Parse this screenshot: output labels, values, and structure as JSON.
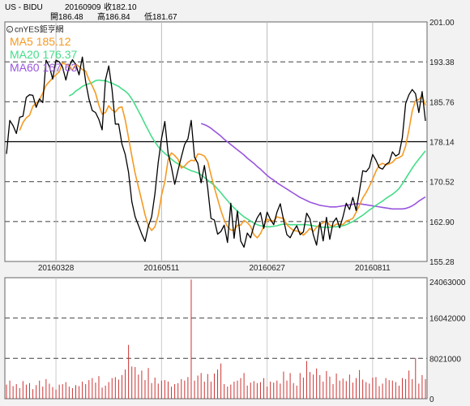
{
  "header": {
    "symbol": "US - BIDU",
    "date": "20160909",
    "close_label": "收182.10",
    "open_label": "開186.48",
    "high_label": "高186.84",
    "low_label": "低181.67"
  },
  "brand": {
    "icon": "copyright-icon",
    "text": "cnYES鉅亨網"
  },
  "colors": {
    "price": "#000000",
    "ma5": "#f59a23",
    "ma20": "#44dd88",
    "ma60": "#9955dd",
    "volume": "#cc3333",
    "grid": "#555555",
    "panel_bg": "#ffffff",
    "page_bg": "#f2f2f2"
  },
  "chart_data": [
    {
      "type": "line",
      "title": "",
      "legend": [
        {
          "name": "MA5",
          "value": "185.12",
          "color": "#f59a23"
        },
        {
          "name": "MA20",
          "value": "176.37",
          "color": "#44dd88"
        },
        {
          "name": "MA60",
          "value": "167.63",
          "color": "#9955dd"
        }
      ],
      "legend_position": "top-left",
      "ylim": [
        155.28,
        201.0
      ],
      "y_ticks": [
        "201.00",
        "193.38",
        "185.76",
        "178.14",
        "170.52",
        "162.90",
        "155.28"
      ],
      "y_ticks_dashed": [
        "193.38",
        "185.76",
        "170.52",
        "162.90"
      ],
      "y_tick_solid": "178.14",
      "x_labels": [
        {
          "index": 15,
          "label": "20160328"
        },
        {
          "index": 47,
          "label": "20160511"
        },
        {
          "index": 79,
          "label": "20160627"
        },
        {
          "index": 111,
          "label": "20160811"
        }
      ],
      "x_count": 128,
      "series": [
        {
          "name": "Price",
          "values": [
            175.8,
            182.2,
            181.2,
            179.7,
            182.8,
            183.0,
            186.6,
            187.1,
            187.0,
            184.7,
            186.3,
            185.6,
            193.7,
            192.5,
            190.1,
            193.7,
            193.4,
            192.4,
            189.9,
            192.5,
            193.8,
            192.9,
            190.9,
            194.3,
            189.6,
            186.3,
            184.1,
            183.7,
            182.4,
            180.4,
            189.9,
            192.6,
            188.1,
            181.5,
            181.5,
            177.7,
            175.7,
            172.3,
            166.7,
            163.8,
            162.2,
            160.5,
            159.1,
            162.0,
            163.8,
            168.2,
            174.2,
            178.7,
            182.0,
            175.9,
            173.3,
            170.0,
            172.7,
            175.2,
            177.6,
            178.7,
            182.2,
            175.2,
            174.0,
            170.3,
            173.6,
            169.3,
            163.5,
            163.2,
            160.5,
            161.0,
            162.2,
            158.9,
            166.4,
            159.7,
            164.9,
            159.2,
            158.0,
            160.7,
            159.8,
            162.1,
            163.6,
            164.6,
            161.6,
            164.7,
            163.3,
            162.3,
            164.7,
            166.3,
            163.2,
            160.4,
            159.8,
            161.1,
            162.1,
            160.4,
            160.9,
            164.5,
            163.4,
            160.4,
            158.4,
            162.8,
            159.2,
            163.7,
            159.5,
            162.7,
            163.6,
            161.7,
            163.8,
            166.4,
            165.2,
            167.5,
            165.0,
            168.7,
            172.6,
            172.4,
            173.2,
            175.7,
            174.6,
            173.2,
            172.9,
            173.8,
            174.2,
            176.2,
            175.4,
            175.8,
            178.9,
            185.4,
            187.1,
            188.1,
            187.3,
            183.7,
            187.7,
            182.1
          ]
        },
        {
          "name": "MA5",
          "values": [
            null,
            null,
            null,
            null,
            180.3,
            181.8,
            182.7,
            183.2,
            184.9,
            185.5,
            186.2,
            187.4,
            188.9,
            189.6,
            190.3,
            190.9,
            191.5,
            193.2,
            192.9,
            192.7,
            191.8,
            192.9,
            192.5,
            191.9,
            191.6,
            190.0,
            188.8,
            187.4,
            185.1,
            183.4,
            183.7,
            185.0,
            184.2,
            183.8,
            184.6,
            184.8,
            182.3,
            178.9,
            175.4,
            172.1,
            169.5,
            166.9,
            164.2,
            162.1,
            161.2,
            161.9,
            164.1,
            167.9,
            170.5,
            174.7,
            176.0,
            175.5,
            174.8,
            173.1,
            173.5,
            174.2,
            174.6,
            174.5,
            175.8,
            175.7,
            175.4,
            174.4,
            171.8,
            169.4,
            167.2,
            165.0,
            163.2,
            161.9,
            161.3,
            161.2,
            162.2,
            162.2,
            163.1,
            162.7,
            162.0,
            160.4,
            159.8,
            160.6,
            162.0,
            163.4,
            163.0,
            163.0,
            163.8,
            163.6,
            163.5,
            162.3,
            161.7,
            161.2,
            161.1,
            160.9,
            160.3,
            160.9,
            161.6,
            161.0,
            161.8,
            162.3,
            162.7,
            163.0,
            162.2,
            162.0,
            162.4,
            162.4,
            162.3,
            163.0,
            163.2,
            163.5,
            164.7,
            166.0,
            167.4,
            168.4,
            169.6,
            171.0,
            172.5,
            173.7,
            174.0,
            173.7,
            173.9,
            174.2,
            174.9,
            175.1,
            175.5,
            177.3,
            180.4,
            184.0,
            186.0,
            186.2,
            186.9,
            185.1
          ]
        },
        {
          "name": "MA20",
          "values": [
            null,
            null,
            null,
            null,
            null,
            null,
            null,
            null,
            null,
            null,
            null,
            null,
            null,
            null,
            null,
            null,
            null,
            null,
            null,
            186.9,
            187.2,
            187.8,
            188.2,
            188.7,
            189.0,
            189.2,
            189.4,
            189.8,
            189.9,
            189.8,
            189.8,
            189.5,
            189.3,
            189.0,
            188.7,
            188.2,
            187.8,
            187.2,
            186.3,
            185.2,
            184.0,
            182.8,
            181.5,
            180.3,
            179.1,
            178.1,
            177.2,
            176.5,
            175.9,
            175.4,
            174.8,
            174.3,
            173.9,
            173.5,
            173.2,
            172.9,
            172.6,
            172.4,
            172.2,
            171.8,
            171.3,
            170.8,
            170.3,
            169.8,
            169.1,
            168.4,
            167.6,
            166.9,
            166.1,
            165.5,
            164.9,
            164.3,
            163.8,
            163.4,
            163.0,
            162.6,
            162.3,
            162.1,
            162.0,
            161.9,
            161.9,
            162.0,
            162.1,
            162.3,
            162.4,
            162.4,
            162.3,
            162.3,
            162.3,
            162.3,
            162.3,
            162.3,
            162.2,
            162.1,
            162.0,
            161.9,
            161.8,
            161.8,
            161.8,
            161.9,
            161.9,
            162.0,
            162.1,
            162.3,
            162.6,
            162.9,
            163.3,
            163.7,
            164.1,
            164.6,
            165.1,
            165.5,
            166.0,
            166.4,
            166.8,
            167.3,
            167.7,
            168.1,
            168.6,
            169.2,
            170.1,
            171.1,
            172.1,
            173.1,
            174.0,
            174.8,
            175.6,
            176.4
          ]
        },
        {
          "name": "MA60",
          "values": [
            null,
            null,
            null,
            null,
            null,
            null,
            null,
            null,
            null,
            null,
            null,
            null,
            null,
            null,
            null,
            null,
            null,
            null,
            null,
            null,
            null,
            null,
            null,
            null,
            null,
            null,
            null,
            null,
            null,
            null,
            null,
            null,
            null,
            null,
            null,
            null,
            null,
            null,
            null,
            null,
            null,
            null,
            null,
            null,
            null,
            null,
            null,
            null,
            null,
            null,
            null,
            null,
            null,
            null,
            null,
            null,
            null,
            null,
            null,
            181.6,
            181.4,
            181.1,
            180.7,
            180.2,
            179.7,
            179.2,
            178.6,
            178.1,
            177.6,
            177.1,
            176.6,
            176.1,
            175.6,
            175.0,
            174.5,
            174.0,
            173.4,
            172.9,
            172.3,
            171.7,
            171.2,
            170.8,
            170.3,
            169.9,
            169.5,
            169.1,
            168.7,
            168.3,
            167.9,
            167.5,
            167.2,
            166.9,
            166.6,
            166.4,
            166.2,
            166.0,
            165.9,
            165.8,
            165.7,
            165.7,
            165.7,
            165.8,
            165.9,
            166.0,
            166.1,
            166.2,
            166.3,
            166.3,
            166.2,
            166.1,
            166.0,
            165.9,
            165.8,
            165.7,
            165.6,
            165.5,
            165.4,
            165.3,
            165.3,
            165.3,
            165.3,
            165.4,
            165.6,
            165.9,
            166.3,
            166.8,
            167.2,
            167.6
          ]
        }
      ]
    },
    {
      "type": "bar",
      "title": "",
      "ylim": [
        0,
        24063000
      ],
      "y_ticks": [
        "24063000",
        "16042000",
        "8021000",
        "0"
      ],
      "y_ticks_dashed": [
        "16042000",
        "8021000"
      ],
      "series": [
        {
          "name": "Volume",
          "values": [
            2800000,
            3600000,
            2500000,
            2900000,
            2100000,
            3500000,
            2800000,
            3100000,
            1900000,
            2700000,
            3600000,
            2400000,
            3900000,
            3000000,
            2300000,
            1800000,
            2800000,
            2900000,
            3300000,
            2400000,
            2100000,
            2700000,
            2500000,
            3400000,
            2900000,
            3700000,
            4100000,
            3200000,
            4500000,
            2200000,
            2600000,
            3300000,
            4100000,
            4300000,
            3800000,
            4700000,
            5800000,
            10700000,
            6400000,
            6300000,
            4800000,
            5600000,
            3700000,
            6100000,
            3100000,
            4200000,
            3000000,
            3600000,
            3700000,
            3400000,
            2400000,
            2900000,
            3100000,
            3900000,
            3600000,
            4300000,
            23700000,
            3600000,
            4600000,
            5100000,
            3400000,
            4900000,
            3400000,
            5000000,
            5800000,
            7000000,
            2900000,
            2400000,
            2800000,
            3400000,
            3600000,
            4100000,
            5100000,
            2600000,
            3200000,
            3500000,
            3100000,
            3300000,
            4100000,
            2400000,
            3400000,
            3200000,
            3600000,
            3000000,
            5400000,
            3600000,
            5100000,
            3100000,
            2600000,
            5100000,
            4200000,
            7500000,
            5300000,
            4800000,
            6000000,
            4700000,
            3400000,
            5500000,
            4400000,
            2900000,
            5000000,
            3600000,
            4000000,
            3500000,
            4800000,
            3200000,
            4100000,
            5700000,
            3800000,
            3300000,
            3000000,
            4200000,
            4300000,
            2500000,
            3000000,
            4100000,
            3700000,
            3600000,
            3300000,
            2600000,
            4100000,
            3900000,
            5600000,
            3900000,
            8100000,
            3000000,
            4700000,
            3900000
          ]
        }
      ]
    }
  ]
}
